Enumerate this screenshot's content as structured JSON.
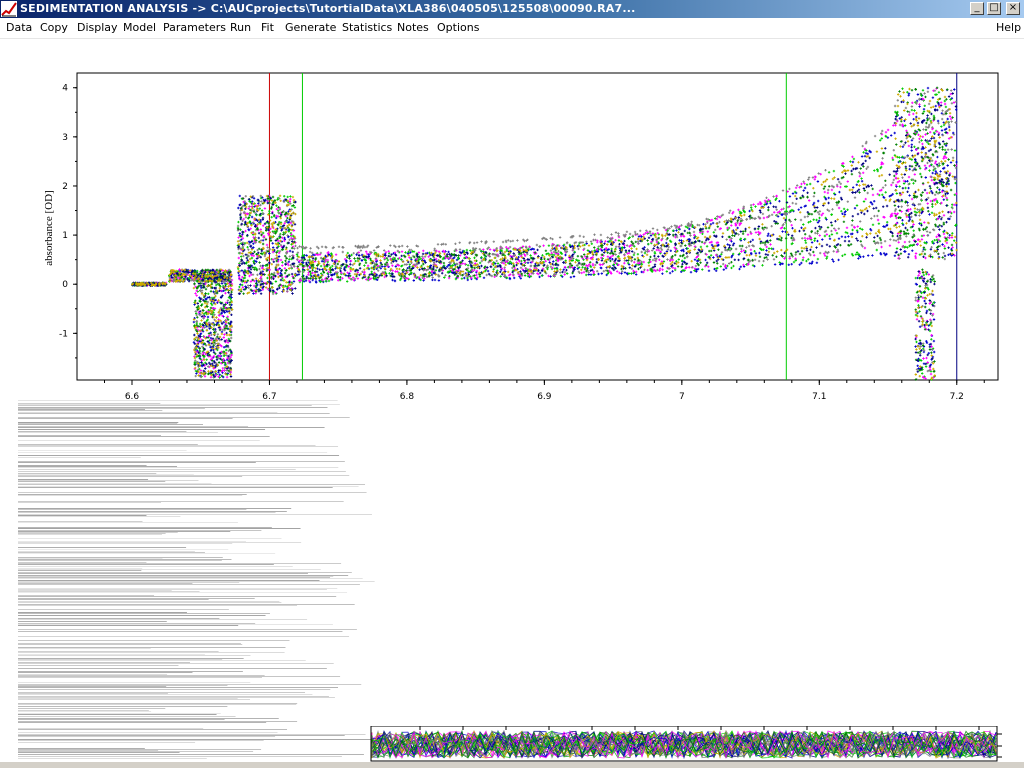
{
  "window": {
    "title": "SEDIMENTATION ANALYSIS -> C:\\AUCprojects\\TutortialData\\XLA386\\040505\\125508\\00090.RA7...",
    "buttons": {
      "minimize": "_",
      "maximize": "□",
      "close": "×"
    }
  },
  "menu": {
    "items": [
      "Data",
      "Copy",
      "Display",
      "Model",
      "Parameters",
      "Run",
      "Fit",
      "Generate",
      "Statistics",
      "Notes",
      "Options"
    ],
    "help": "Help"
  },
  "chart_data": {
    "type": "scatter",
    "ylabel": "absorbance [OD]",
    "xlabel": "",
    "x_ticks": [
      "6.6",
      "6.7",
      "6.8",
      "6.9",
      "7",
      "7.1",
      "7.2"
    ],
    "y_ticks": [
      "4",
      "3",
      "2",
      "1",
      "0",
      "-1"
    ],
    "xlim": [
      6.56,
      7.23
    ],
    "ylim": [
      -1.95,
      4.3
    ],
    "vertical_markers": [
      {
        "x": 6.7,
        "color": "#cc0000"
      },
      {
        "x": 6.724,
        "color": "#00cc00"
      },
      {
        "x": 7.076,
        "color": "#00cc00"
      },
      {
        "x": 7.2,
        "color": "#000080"
      }
    ],
    "series_colors": [
      "#0000cc",
      "#00cc00",
      "#ff00ff",
      "#808080",
      "#008000",
      "#000080",
      "#ccaa00"
    ]
  }
}
